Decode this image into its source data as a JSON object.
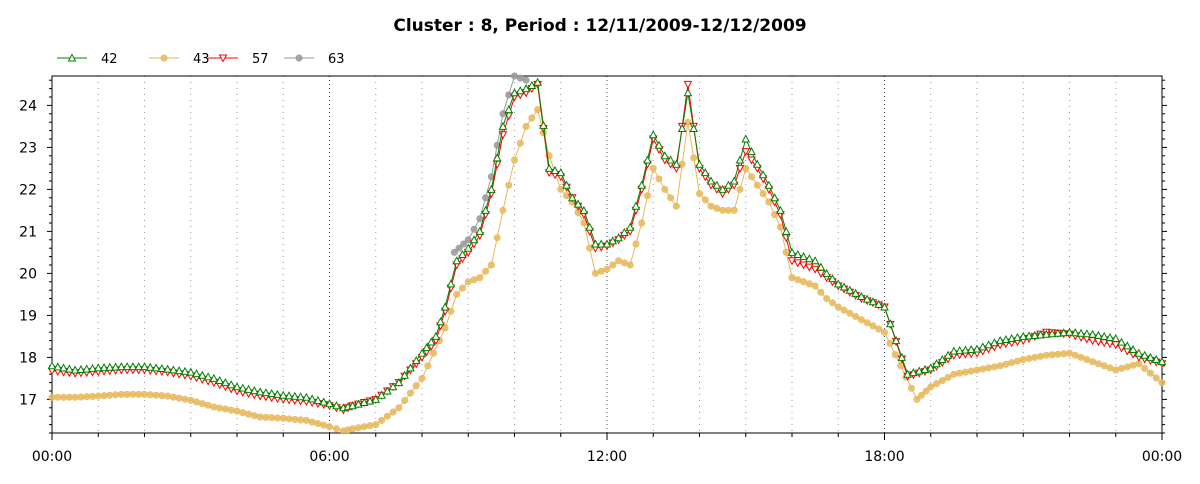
{
  "chart_data": {
    "type": "line",
    "title": "Cluster : 8, Period : 12/11/2009-12/12/2009",
    "xlabel": "",
    "ylabel": "",
    "x_range_hours": [
      0,
      24
    ],
    "ylim": [
      16.2,
      24.7
    ],
    "x_tick_labels": [
      {
        "hour": 0,
        "label": "00:00"
      },
      {
        "hour": 6,
        "label": "06:00"
      },
      {
        "hour": 12,
        "label": "12:00"
      },
      {
        "hour": 18,
        "label": "18:00"
      },
      {
        "hour": 24,
        "label": "00:00"
      }
    ],
    "y_ticks": [
      17,
      18,
      19,
      20,
      21,
      22,
      23,
      24
    ],
    "grid": "vertical dotted lines every hour",
    "legend_position": "top-left",
    "series": [
      {
        "name": "42",
        "color": "#008000",
        "marker": "triangle-up",
        "points": [
          [
            0.0,
            17.8
          ],
          [
            0.5,
            17.7
          ],
          [
            1.0,
            17.75
          ],
          [
            1.5,
            17.78
          ],
          [
            2.0,
            17.78
          ],
          [
            2.5,
            17.72
          ],
          [
            3.0,
            17.65
          ],
          [
            3.5,
            17.5
          ],
          [
            4.0,
            17.3
          ],
          [
            4.5,
            17.18
          ],
          [
            5.0,
            17.1
          ],
          [
            5.5,
            17.05
          ],
          [
            6.0,
            16.9
          ],
          [
            6.3,
            16.8
          ],
          [
            6.5,
            16.85
          ],
          [
            7.0,
            17.0
          ],
          [
            7.5,
            17.4
          ],
          [
            8.0,
            18.1
          ],
          [
            8.3,
            18.5
          ],
          [
            8.5,
            19.2
          ],
          [
            8.75,
            20.3
          ],
          [
            9.0,
            20.6
          ],
          [
            9.25,
            21.0
          ],
          [
            9.5,
            22.0
          ],
          [
            9.75,
            23.5
          ],
          [
            10.0,
            24.3
          ],
          [
            10.25,
            24.4
          ],
          [
            10.5,
            24.55
          ],
          [
            10.75,
            22.5
          ],
          [
            11.0,
            22.4
          ],
          [
            11.25,
            21.8
          ],
          [
            11.5,
            21.5
          ],
          [
            11.75,
            20.7
          ],
          [
            12.0,
            20.7
          ],
          [
            12.25,
            20.85
          ],
          [
            12.5,
            21.1
          ],
          [
            12.75,
            22.1
          ],
          [
            13.0,
            23.3
          ],
          [
            13.25,
            22.8
          ],
          [
            13.5,
            22.6
          ],
          [
            13.75,
            24.3
          ],
          [
            14.0,
            22.6
          ],
          [
            14.25,
            22.2
          ],
          [
            14.5,
            22.0
          ],
          [
            14.75,
            22.2
          ],
          [
            15.0,
            23.2
          ],
          [
            15.25,
            22.6
          ],
          [
            15.5,
            22.1
          ],
          [
            15.75,
            21.5
          ],
          [
            16.0,
            20.5
          ],
          [
            16.25,
            20.4
          ],
          [
            16.5,
            20.3
          ],
          [
            16.75,
            20.0
          ],
          [
            17.0,
            19.75
          ],
          [
            17.5,
            19.45
          ],
          [
            18.0,
            19.2
          ],
          [
            18.5,
            17.6
          ],
          [
            19.0,
            17.75
          ],
          [
            19.5,
            18.15
          ],
          [
            20.0,
            18.2
          ],
          [
            20.5,
            18.4
          ],
          [
            21.0,
            18.5
          ],
          [
            21.5,
            18.55
          ],
          [
            22.0,
            18.6
          ],
          [
            22.5,
            18.55
          ],
          [
            23.0,
            18.45
          ],
          [
            23.5,
            18.1
          ],
          [
            24.0,
            17.9
          ]
        ]
      },
      {
        "name": "43",
        "color": "#E6B85C",
        "marker": "circle",
        "points": [
          [
            0.0,
            17.05
          ],
          [
            0.5,
            17.05
          ],
          [
            1.0,
            17.08
          ],
          [
            1.5,
            17.12
          ],
          [
            2.0,
            17.12
          ],
          [
            2.5,
            17.08
          ],
          [
            3.0,
            16.98
          ],
          [
            3.5,
            16.82
          ],
          [
            4.0,
            16.72
          ],
          [
            4.5,
            16.58
          ],
          [
            5.0,
            16.55
          ],
          [
            5.5,
            16.5
          ],
          [
            6.0,
            16.35
          ],
          [
            6.3,
            16.25
          ],
          [
            6.5,
            16.3
          ],
          [
            7.0,
            16.4
          ],
          [
            7.5,
            16.8
          ],
          [
            8.0,
            17.5
          ],
          [
            8.5,
            18.7
          ],
          [
            8.75,
            19.5
          ],
          [
            9.0,
            19.8
          ],
          [
            9.25,
            19.9
          ],
          [
            9.5,
            20.2
          ],
          [
            9.75,
            21.5
          ],
          [
            10.0,
            22.7
          ],
          [
            10.25,
            23.5
          ],
          [
            10.5,
            23.9
          ],
          [
            10.75,
            22.8
          ],
          [
            11.0,
            22.0
          ],
          [
            11.25,
            21.7
          ],
          [
            11.5,
            21.2
          ],
          [
            11.75,
            20.0
          ],
          [
            12.0,
            20.1
          ],
          [
            12.25,
            20.3
          ],
          [
            12.5,
            20.2
          ],
          [
            12.75,
            21.2
          ],
          [
            13.0,
            22.5
          ],
          [
            13.25,
            22.0
          ],
          [
            13.5,
            21.6
          ],
          [
            13.75,
            23.6
          ],
          [
            14.0,
            21.9
          ],
          [
            14.25,
            21.6
          ],
          [
            14.5,
            21.5
          ],
          [
            14.75,
            21.5
          ],
          [
            15.0,
            22.5
          ],
          [
            15.25,
            22.1
          ],
          [
            15.5,
            21.7
          ],
          [
            15.75,
            21.1
          ],
          [
            16.0,
            19.9
          ],
          [
            16.25,
            19.8
          ],
          [
            16.5,
            19.7
          ],
          [
            16.75,
            19.4
          ],
          [
            17.0,
            19.2
          ],
          [
            17.5,
            18.9
          ],
          [
            18.0,
            18.6
          ],
          [
            18.7,
            17.0
          ],
          [
            19.0,
            17.3
          ],
          [
            19.5,
            17.6
          ],
          [
            20.0,
            17.7
          ],
          [
            20.5,
            17.8
          ],
          [
            21.0,
            17.95
          ],
          [
            21.5,
            18.05
          ],
          [
            22.0,
            18.1
          ],
          [
            22.5,
            17.9
          ],
          [
            23.0,
            17.7
          ],
          [
            23.5,
            17.85
          ],
          [
            24.0,
            17.4
          ]
        ]
      },
      {
        "name": "57",
        "color": "#FF0000",
        "marker": "triangle-down",
        "points": [
          [
            0.0,
            17.68
          ],
          [
            0.5,
            17.62
          ],
          [
            1.0,
            17.66
          ],
          [
            1.5,
            17.7
          ],
          [
            2.0,
            17.7
          ],
          [
            2.5,
            17.65
          ],
          [
            3.0,
            17.55
          ],
          [
            3.5,
            17.4
          ],
          [
            4.0,
            17.2
          ],
          [
            4.5,
            17.08
          ],
          [
            5.0,
            17.0
          ],
          [
            5.5,
            16.95
          ],
          [
            6.0,
            16.85
          ],
          [
            6.3,
            16.75
          ],
          [
            6.5,
            16.85
          ],
          [
            7.0,
            17.0
          ],
          [
            7.5,
            17.4
          ],
          [
            8.0,
            18.0
          ],
          [
            8.3,
            18.4
          ],
          [
            8.5,
            19.1
          ],
          [
            8.75,
            20.2
          ],
          [
            9.0,
            20.5
          ],
          [
            9.25,
            20.9
          ],
          [
            9.5,
            21.9
          ],
          [
            9.75,
            23.3
          ],
          [
            10.0,
            24.2
          ],
          [
            10.25,
            24.3
          ],
          [
            10.5,
            24.5
          ],
          [
            10.75,
            22.4
          ],
          [
            11.0,
            22.3
          ],
          [
            11.25,
            21.8
          ],
          [
            11.5,
            21.4
          ],
          [
            11.75,
            20.6
          ],
          [
            12.0,
            20.65
          ],
          [
            12.25,
            20.8
          ],
          [
            12.5,
            21.0
          ],
          [
            12.75,
            22.0
          ],
          [
            13.0,
            23.2
          ],
          [
            13.25,
            22.7
          ],
          [
            13.5,
            22.5
          ],
          [
            13.75,
            24.5
          ],
          [
            14.0,
            22.5
          ],
          [
            14.25,
            22.1
          ],
          [
            14.5,
            21.9
          ],
          [
            14.75,
            22.1
          ],
          [
            15.0,
            22.9
          ],
          [
            15.25,
            22.5
          ],
          [
            15.5,
            22.0
          ],
          [
            15.75,
            21.4
          ],
          [
            16.0,
            20.3
          ],
          [
            16.25,
            20.2
          ],
          [
            16.5,
            20.1
          ],
          [
            16.75,
            19.9
          ],
          [
            17.0,
            19.7
          ],
          [
            17.5,
            19.4
          ],
          [
            18.0,
            19.2
          ],
          [
            18.5,
            17.55
          ],
          [
            19.0,
            17.7
          ],
          [
            19.5,
            18.05
          ],
          [
            20.0,
            18.1
          ],
          [
            20.5,
            18.3
          ],
          [
            21.0,
            18.4
          ],
          [
            21.5,
            18.6
          ],
          [
            22.0,
            18.55
          ],
          [
            22.5,
            18.4
          ],
          [
            23.0,
            18.3
          ],
          [
            23.5,
            18.0
          ],
          [
            24.0,
            17.85
          ]
        ]
      },
      {
        "name": "63",
        "color": "#999999",
        "marker": "circle",
        "points": [
          [
            8.7,
            20.5
          ],
          [
            9.0,
            20.8
          ],
          [
            9.25,
            21.3
          ],
          [
            9.5,
            22.3
          ],
          [
            9.75,
            23.8
          ],
          [
            10.0,
            24.7
          ],
          [
            10.25,
            24.6
          ]
        ]
      }
    ]
  }
}
